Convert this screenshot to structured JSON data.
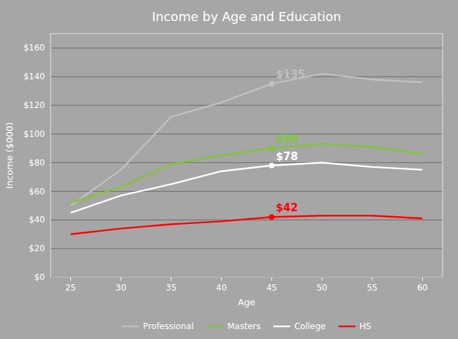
{
  "chart_data": {
    "type": "line",
    "title": "Income by Age and Education",
    "x_label": "Age",
    "y_label": "Income ($000)",
    "x": [
      25,
      30,
      35,
      40,
      45,
      50,
      55,
      60
    ],
    "series": [
      {
        "name": "Professional",
        "color": "#c0c0c0",
        "values": [
          50,
          75,
          112,
          122,
          135,
          142,
          138,
          136
        ]
      },
      {
        "name": "Masters",
        "color": "#7dc832",
        "values": [
          52,
          63,
          79,
          85,
          90,
          93,
          91,
          86
        ]
      },
      {
        "name": "College",
        "color": "#ffffff",
        "values": [
          45,
          57,
          65,
          74,
          78,
          80,
          77,
          75
        ]
      },
      {
        "name": "HS",
        "color": "#ff0000",
        "values": [
          30,
          34,
          37,
          39,
          42,
          43,
          43,
          41
        ]
      }
    ],
    "annotations": [
      {
        "text": "$42",
        "x": 45,
        "y": 42,
        "color": "#ff0000"
      },
      {
        "text": "$78",
        "x": 45,
        "y": 78,
        "color": "#ffffff"
      },
      {
        "text": "$90",
        "x": 45,
        "y": 90,
        "color": "#7dc832"
      },
      {
        "text": "$135",
        "x": 45,
        "y": 135,
        "color": "#c0c0c0"
      }
    ],
    "marker": "circle",
    "xlim": [
      23,
      62
    ],
    "xticks": [
      25,
      30,
      35,
      40,
      45,
      50,
      55,
      60
    ],
    "ylim": [
      0,
      170
    ],
    "yticks": [
      {
        "value": 0,
        "label": "$0"
      },
      {
        "value": 20,
        "label": "$20"
      },
      {
        "value": 40,
        "label": "$40"
      },
      {
        "value": 60,
        "label": "$60"
      },
      {
        "value": 80,
        "label": "$80"
      },
      {
        "value": 100,
        "label": "$100"
      },
      {
        "value": 120,
        "label": "$120"
      },
      {
        "value": 140,
        "label": "$140"
      },
      {
        "value": 160,
        "label": "$160"
      }
    ],
    "grid": true,
    "legend": "bottom"
  }
}
